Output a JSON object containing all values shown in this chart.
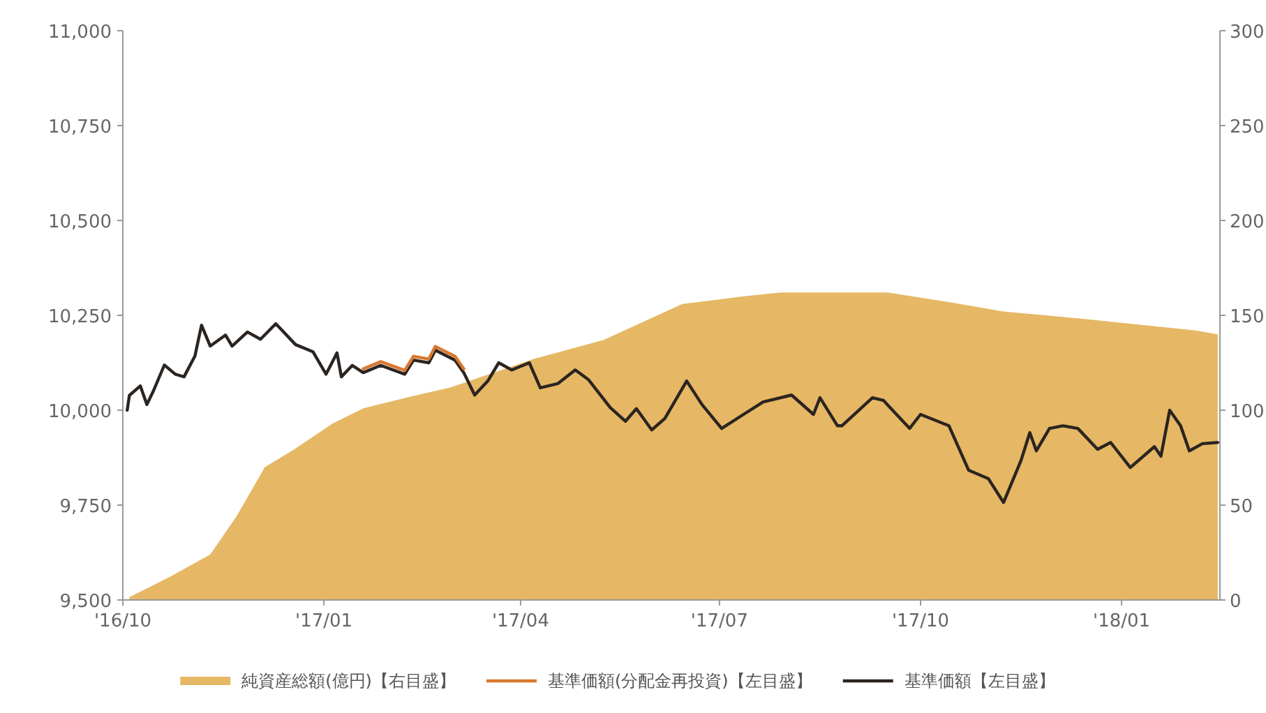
{
  "chart_data": {
    "type": "line",
    "legend": "bottom",
    "grid": false,
    "xlim": [
      "2016-10-01",
      "2018-02-15"
    ],
    "xticks": [
      {
        "value": "2016-10-01",
        "label": "'16/10"
      },
      {
        "value": "2017-01-01",
        "label": "'17/01"
      },
      {
        "value": "2017-04-01",
        "label": "'17/04"
      },
      {
        "value": "2017-07-01",
        "label": "'17/07"
      },
      {
        "value": "2017-10-01",
        "label": "'17/10"
      },
      {
        "value": "2018-01-01",
        "label": "'18/01"
      }
    ],
    "ylim": [
      9500,
      11000
    ],
    "yticks": [
      {
        "value": 9500,
        "label": "9,500"
      },
      {
        "value": 9750,
        "label": "9,750"
      },
      {
        "value": 10000,
        "label": "10,000"
      },
      {
        "value": 10250,
        "label": "10,250"
      },
      {
        "value": 10500,
        "label": "10,500"
      },
      {
        "value": 10750,
        "label": "10,750"
      },
      {
        "value": 11000,
        "label": "11,000"
      }
    ],
    "y2lim": [
      0,
      300
    ],
    "y2ticks": [
      0,
      50,
      100,
      150,
      200,
      250,
      300
    ],
    "series": [
      {
        "name": "純資産総額(億円)【右目盛】",
        "type": "area",
        "axis": "y2",
        "color": "#e6b865",
        "x": [
          "2016-10-04",
          "2016-10-23",
          "2016-11-10",
          "2016-11-22",
          "2016-12-05",
          "2016-12-18",
          "2017-01-05",
          "2017-01-19",
          "2017-02-09",
          "2017-02-28",
          "2017-04-07",
          "2017-05-09",
          "2017-06-14",
          "2017-07-12",
          "2017-07-29",
          "2017-09-16",
          "2017-10-14",
          "2017-11-08",
          "2017-12-16",
          "2018-02-04",
          "2018-02-14"
        ],
        "values": [
          1.5,
          12.5,
          24,
          44,
          70,
          79,
          93,
          101,
          107,
          112,
          127,
          137,
          156,
          160,
          162,
          162,
          157,
          152,
          148,
          142,
          140
        ]
      },
      {
        "name": "基準価額(分配金再投資)【左目盛】",
        "type": "line",
        "color": "#d9782e",
        "x": [
          "2017-01-19",
          "2017-01-27",
          "2017-02-07",
          "2017-02-11",
          "2017-02-18",
          "2017-02-21",
          "2017-03-02",
          "2017-03-06"
        ],
        "values": [
          10109,
          10128,
          10105,
          10142,
          10135,
          10168,
          10142,
          10109
        ]
      },
      {
        "name": "基準価額【左目盛】",
        "type": "line",
        "color": "#2b2420",
        "x": [
          "2016-10-03",
          "2016-10-04",
          "2016-10-09",
          "2016-10-12",
          "2016-10-15",
          "2016-10-20",
          "2016-10-25",
          "2016-10-29",
          "2016-11-03",
          "2016-11-06",
          "2016-11-10",
          "2016-11-17",
          "2016-11-20",
          "2016-11-27",
          "2016-12-03",
          "2016-12-10",
          "2016-12-19",
          "2016-12-27",
          "2017-01-02",
          "2017-01-07",
          "2017-01-09",
          "2017-01-14",
          "2017-01-19",
          "2017-01-27",
          "2017-02-07",
          "2017-02-11",
          "2017-02-18",
          "2017-02-21",
          "2017-03-02",
          "2017-03-06",
          "2017-03-11",
          "2017-03-17",
          "2017-03-22",
          "2017-03-28",
          "2017-04-05",
          "2017-04-10",
          "2017-04-18",
          "2017-04-26",
          "2017-05-02",
          "2017-05-12",
          "2017-05-19",
          "2017-05-24",
          "2017-05-31",
          "2017-06-06",
          "2017-06-16",
          "2017-06-23",
          "2017-07-02",
          "2017-07-12",
          "2017-07-21",
          "2017-08-03",
          "2017-08-13",
          "2017-08-16",
          "2017-08-24",
          "2017-08-26",
          "2017-09-09",
          "2017-09-14",
          "2017-09-26",
          "2017-10-01",
          "2017-10-14",
          "2017-10-23",
          "2017-11-01",
          "2017-11-08",
          "2017-11-16",
          "2017-11-20",
          "2017-11-23",
          "2017-11-29",
          "2017-12-05",
          "2017-12-12",
          "2017-12-21",
          "2017-12-27",
          "2018-01-05",
          "2018-01-16",
          "2018-01-19",
          "2018-01-23",
          "2018-01-28",
          "2018-02-01",
          "2018-02-07",
          "2018-02-14"
        ],
        "values": [
          10000,
          10039,
          10064,
          10015,
          10051,
          10119,
          10095,
          10088,
          10143,
          10224,
          10169,
          10198,
          10169,
          10206,
          10187,
          10228,
          10173,
          10154,
          10095,
          10151,
          10088,
          10118,
          10099,
          10118,
          10095,
          10132,
          10125,
          10158,
          10132,
          10099,
          10040,
          10077,
          10125,
          10106,
          10125,
          10059,
          10070,
          10106,
          10081,
          10007,
          9971,
          10004,
          9948,
          9978,
          10077,
          10015,
          9952,
          9989,
          10022,
          10040,
          9989,
          10033,
          9959,
          9959,
          10033,
          10026,
          9952,
          9989,
          9959,
          9842,
          9820,
          9757,
          9868,
          9941,
          9893,
          9952,
          9959,
          9952,
          9897,
          9915,
          9849,
          9904,
          9879,
          10000,
          9959,
          9893,
          9912,
          9915
        ]
      }
    ]
  }
}
